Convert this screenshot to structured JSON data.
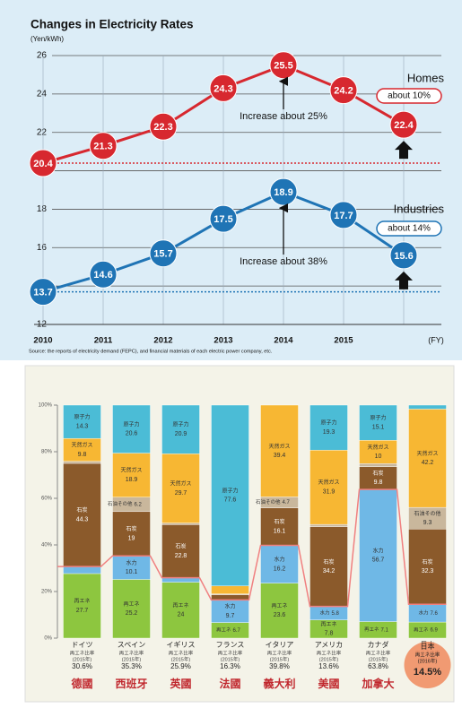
{
  "chart_data": [
    {
      "type": "line",
      "title": "Changes in Electricity Rates",
      "subtitle": "(Yen/kWh)",
      "x_label": "(FY)",
      "categories": [
        "2010",
        "2011",
        "2012",
        "2013",
        "2014",
        "2015",
        null
      ],
      "series": [
        {
          "name": "Homes",
          "color": "#d7282f",
          "values": [
            20.4,
            21.3,
            22.3,
            24.3,
            25.5,
            24.2,
            22.4
          ]
        },
        {
          "name": "Industries",
          "color": "#1f74b5",
          "values": [
            13.7,
            14.6,
            15.7,
            17.5,
            18.9,
            17.7,
            15.6
          ]
        }
      ],
      "annotations": [
        "about 10%",
        "Increase about 25%",
        "about 14%",
        "Increase about 38%"
      ],
      "source": "Source: the reports of electricity demand (FEPC), and financial materials of each electric power company, etc.",
      "ylim": [
        12,
        26
      ],
      "yticks": [
        12,
        14,
        16,
        18,
        20,
        22,
        24,
        26
      ],
      "grid": true
    },
    {
      "type": "stacked_bar",
      "categories": [
        "ドイツ",
        "スペイン",
        "イギリス",
        "フランス",
        "イタリア",
        "アメリカ",
        "カナダ",
        "日本"
      ],
      "local_names": [
        "德國",
        "西班牙",
        "英國",
        "法國",
        "義大利",
        "美國",
        "加拿大",
        null
      ],
      "share_caption": "再エネ比率",
      "share_years": [
        "(2015年)",
        "(2015年)",
        "(2015年)",
        "(2015年)",
        "(2015年)",
        "(2015年)",
        "(2015年)",
        "(2016年)"
      ],
      "shares": [
        "30.6%",
        "35.3%",
        "25.9%",
        "16.3%",
        "39.8%",
        "13.6%",
        "63.8%",
        "14.5%"
      ],
      "series": [
        {
          "name": "再エネ",
          "color": "#8dc63f",
          "values": [
            27.7,
            25.2,
            24.0,
            6.7,
            23.6,
            7.8,
            7.1,
            6.9
          ]
        },
        {
          "name": "水力",
          "color": "#6fb8e6",
          "values": [
            3.0,
            10.1,
            1.9,
            9.7,
            16.2,
            5.8,
            56.7,
            7.6
          ]
        },
        {
          "name": "石炭",
          "color": "#8b5a2b",
          "values": [
            44.3,
            19.0,
            22.8,
            2.2,
            16.1,
            34.2,
            9.8,
            32.3
          ]
        },
        {
          "name": "石油その他",
          "color": "#c9b79c",
          "values": [
            0.9,
            6.2,
            0.7,
            0.4,
            4.7,
            1.0,
            1.3,
            9.3
          ]
        },
        {
          "name": "天然ガス",
          "color": "#f7b733",
          "values": [
            9.8,
            18.9,
            29.7,
            3.4,
            39.4,
            31.9,
            10.0,
            42.2
          ]
        },
        {
          "name": "原子力",
          "color": "#4bbcd6",
          "values": [
            14.3,
            20.6,
            20.9,
            77.6,
            0,
            19.3,
            15.1,
            1.7
          ]
        }
      ],
      "ylim": [
        0,
        100
      ],
      "yticks": [
        {
          "value": 0,
          "label": "0%"
        },
        {
          "value": 20,
          "label": "20%"
        },
        {
          "value": 40,
          "label": "40%"
        },
        {
          "value": 60,
          "label": "60%"
        },
        {
          "value": 80,
          "label": "80%"
        },
        {
          "value": 100,
          "label": "100%"
        }
      ]
    }
  ]
}
